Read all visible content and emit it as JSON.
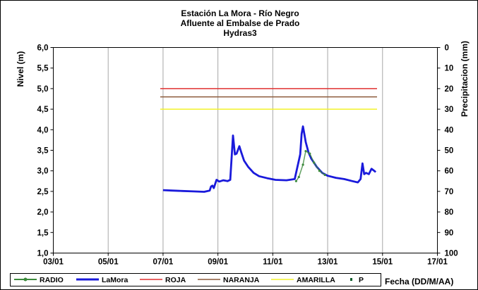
{
  "chart_data": {
    "type": "line",
    "title_lines": [
      "Estación La Mora - Río Negro",
      "Afluente al Embalse de Prado",
      "Hydras3"
    ],
    "xlabel": "Fecha (DD/M/AA)",
    "ylabel": "Nivel (m)",
    "y2label": "Precipitacion (mm)",
    "x_ticks": [
      "03/01",
      "05/01",
      "07/01",
      "09/01",
      "11/01",
      "13/01",
      "15/01",
      "17/01"
    ],
    "xlim": [
      3,
      17
    ],
    "ylim": [
      1.0,
      6.0
    ],
    "y_ticks": [
      "1,0",
      "1,5",
      "2,0",
      "2,5",
      "3,0",
      "3,5",
      "4,0",
      "4,5",
      "5,0",
      "5,5",
      "6,0"
    ],
    "y2lim": [
      100,
      0
    ],
    "y2_ticks": [
      "100",
      "90",
      "80",
      "70",
      "60",
      "50",
      "40",
      "30",
      "20",
      "10",
      "0"
    ],
    "grid": "vertical",
    "legend_position": "bottom",
    "legend": [
      "RADIO",
      "LaMora",
      "ROJA",
      "NARANJA",
      "AMARILLA",
      "P"
    ],
    "series": [
      {
        "name": "LaMora",
        "color": "#1a1adb",
        "x": [
          7.0,
          7.3,
          7.7,
          8.1,
          8.5,
          8.7,
          8.75,
          8.8,
          8.85,
          8.95,
          9.05,
          9.2,
          9.35,
          9.45,
          9.55,
          9.62,
          9.68,
          9.78,
          9.85,
          9.95,
          10.1,
          10.3,
          10.5,
          10.8,
          11.1,
          11.5,
          11.8,
          12.0,
          12.05,
          12.1,
          12.15,
          12.2,
          12.3,
          12.4,
          12.6,
          12.8,
          13.0,
          13.3,
          13.6,
          13.9,
          14.1,
          14.2,
          14.27,
          14.33,
          14.4,
          14.5,
          14.6,
          14.7,
          14.75
        ],
        "values": [
          2.53,
          2.52,
          2.51,
          2.5,
          2.49,
          2.52,
          2.62,
          2.64,
          2.58,
          2.78,
          2.74,
          2.77,
          2.75,
          2.78,
          3.86,
          3.4,
          3.42,
          3.6,
          3.45,
          3.25,
          3.1,
          2.95,
          2.87,
          2.82,
          2.78,
          2.77,
          2.8,
          3.4,
          3.9,
          4.08,
          3.9,
          3.7,
          3.45,
          3.3,
          3.1,
          2.95,
          2.88,
          2.83,
          2.8,
          2.75,
          2.72,
          2.8,
          3.18,
          2.92,
          2.95,
          2.92,
          3.05,
          3.0,
          2.97
        ]
      },
      {
        "name": "RADIO",
        "color": "#3c8a3c",
        "x": [
          11.85,
          11.95,
          12.1,
          12.2,
          12.35,
          12.5,
          12.7,
          12.9
        ],
        "values": [
          2.75,
          2.85,
          3.15,
          3.48,
          3.42,
          3.2,
          3.0,
          2.9
        ]
      },
      {
        "name": "ROJA",
        "color": "#e03030",
        "x": [
          6.9,
          14.8
        ],
        "values": [
          5.0,
          5.0
        ]
      },
      {
        "name": "NARANJA",
        "color": "#8b5a3a",
        "x": [
          6.9,
          14.8
        ],
        "values": [
          4.8,
          4.8
        ]
      },
      {
        "name": "AMARILLA",
        "color": "#f2f22a",
        "x": [
          6.9,
          14.8
        ],
        "values": [
          4.5,
          4.5
        ]
      },
      {
        "name": "P",
        "color": "#0d5c2a",
        "x": [],
        "values": []
      }
    ]
  }
}
